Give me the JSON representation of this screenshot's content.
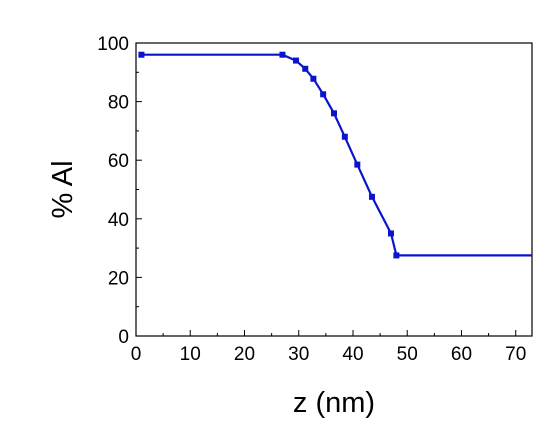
{
  "chart_data": {
    "type": "line",
    "xlabel": "z (nm)",
    "ylabel": "% Al",
    "xlim": [
      0,
      73
    ],
    "ylim": [
      0,
      100
    ],
    "x_ticks": [
      0,
      10,
      20,
      30,
      40,
      50,
      60,
      70
    ],
    "y_ticks": [
      0,
      20,
      40,
      60,
      80,
      100
    ],
    "minor_ticks": true,
    "grid": false,
    "legend": "none",
    "series": [
      {
        "color": "#0a14cc",
        "marker": "square",
        "points": [
          {
            "x": 1.0,
            "y": 96.0
          },
          {
            "x": 27.0,
            "y": 96.0
          },
          {
            "x": 29.5,
            "y": 94.0
          },
          {
            "x": 31.2,
            "y": 91.2
          },
          {
            "x": 32.7,
            "y": 87.8
          },
          {
            "x": 34.5,
            "y": 82.5
          },
          {
            "x": 36.5,
            "y": 76.0
          },
          {
            "x": 38.5,
            "y": 68.0
          },
          {
            "x": 40.8,
            "y": 58.5
          },
          {
            "x": 43.5,
            "y": 47.5
          },
          {
            "x": 47.0,
            "y": 35.0
          },
          {
            "x": 48.0,
            "y": 27.5
          }
        ],
        "tail_to_x": 73,
        "tail_y": 27.5
      }
    ]
  }
}
